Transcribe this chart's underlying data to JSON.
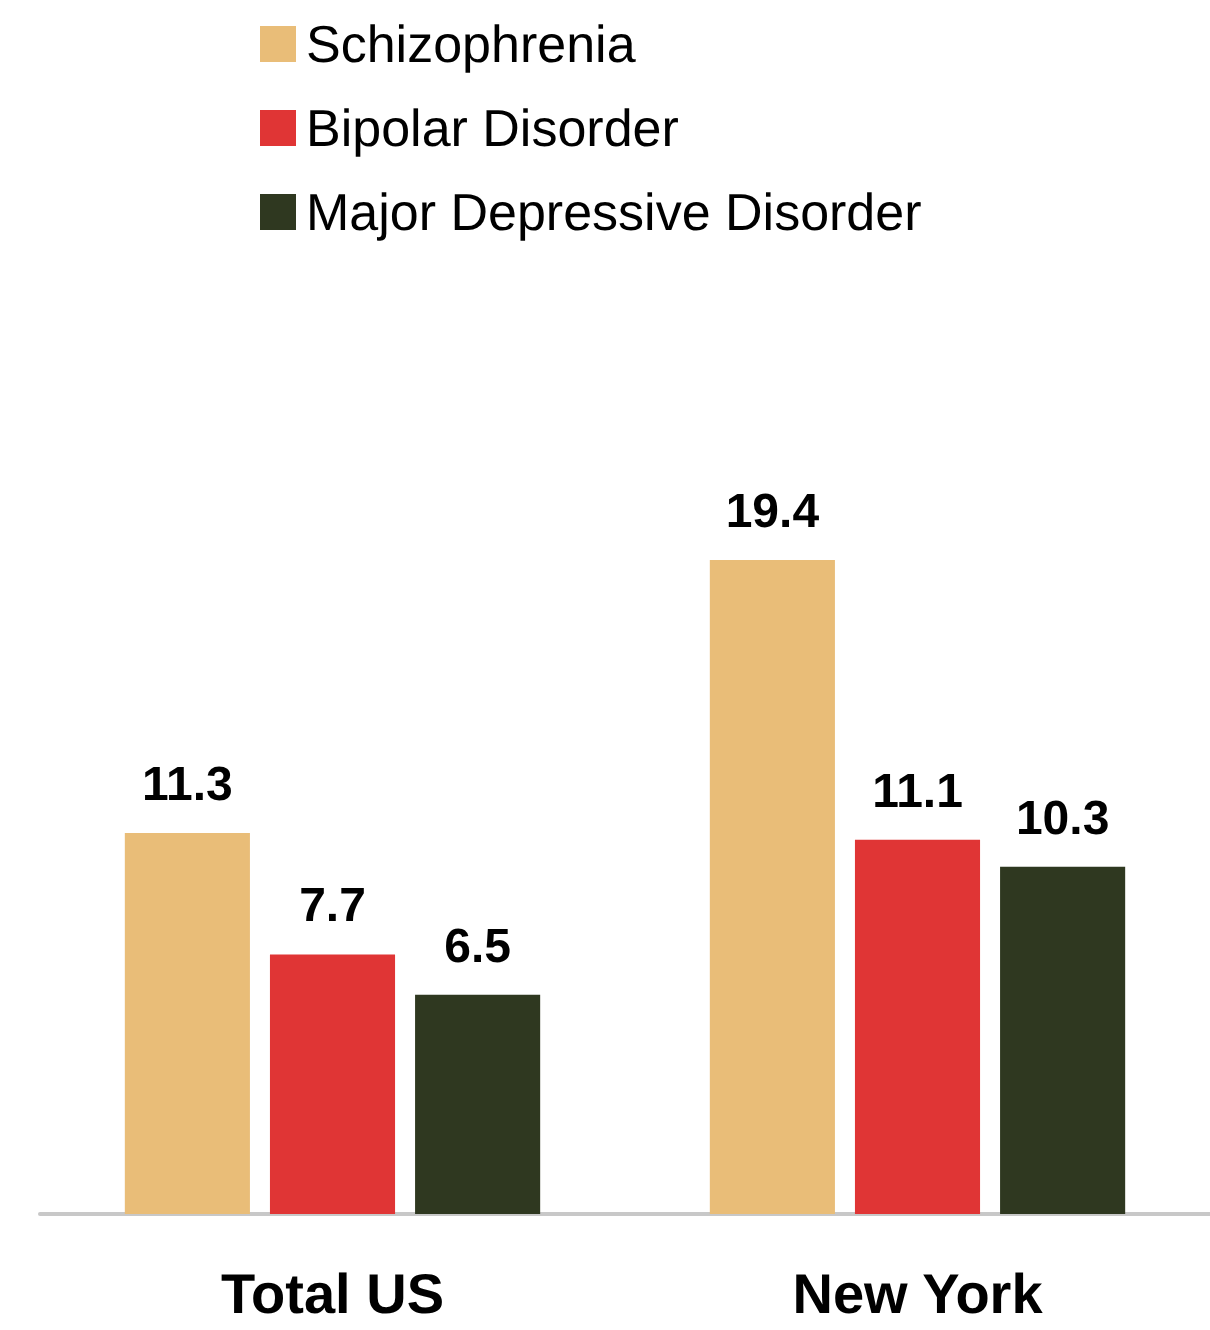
{
  "chart_data": {
    "type": "bar",
    "categories": [
      "Total US",
      "New York"
    ],
    "series": [
      {
        "name": "Schizophrenia",
        "color": "#e9bd78",
        "values": [
          11.3,
          19.4
        ]
      },
      {
        "name": "Bipolar Disorder",
        "color": "#e03535",
        "values": [
          7.7,
          11.1
        ]
      },
      {
        "name": "Major Depressive Disorder",
        "color": "#2f3820",
        "values": [
          6.5,
          10.3
        ]
      }
    ],
    "data_labels": true,
    "legend": "top",
    "grid": false
  }
}
